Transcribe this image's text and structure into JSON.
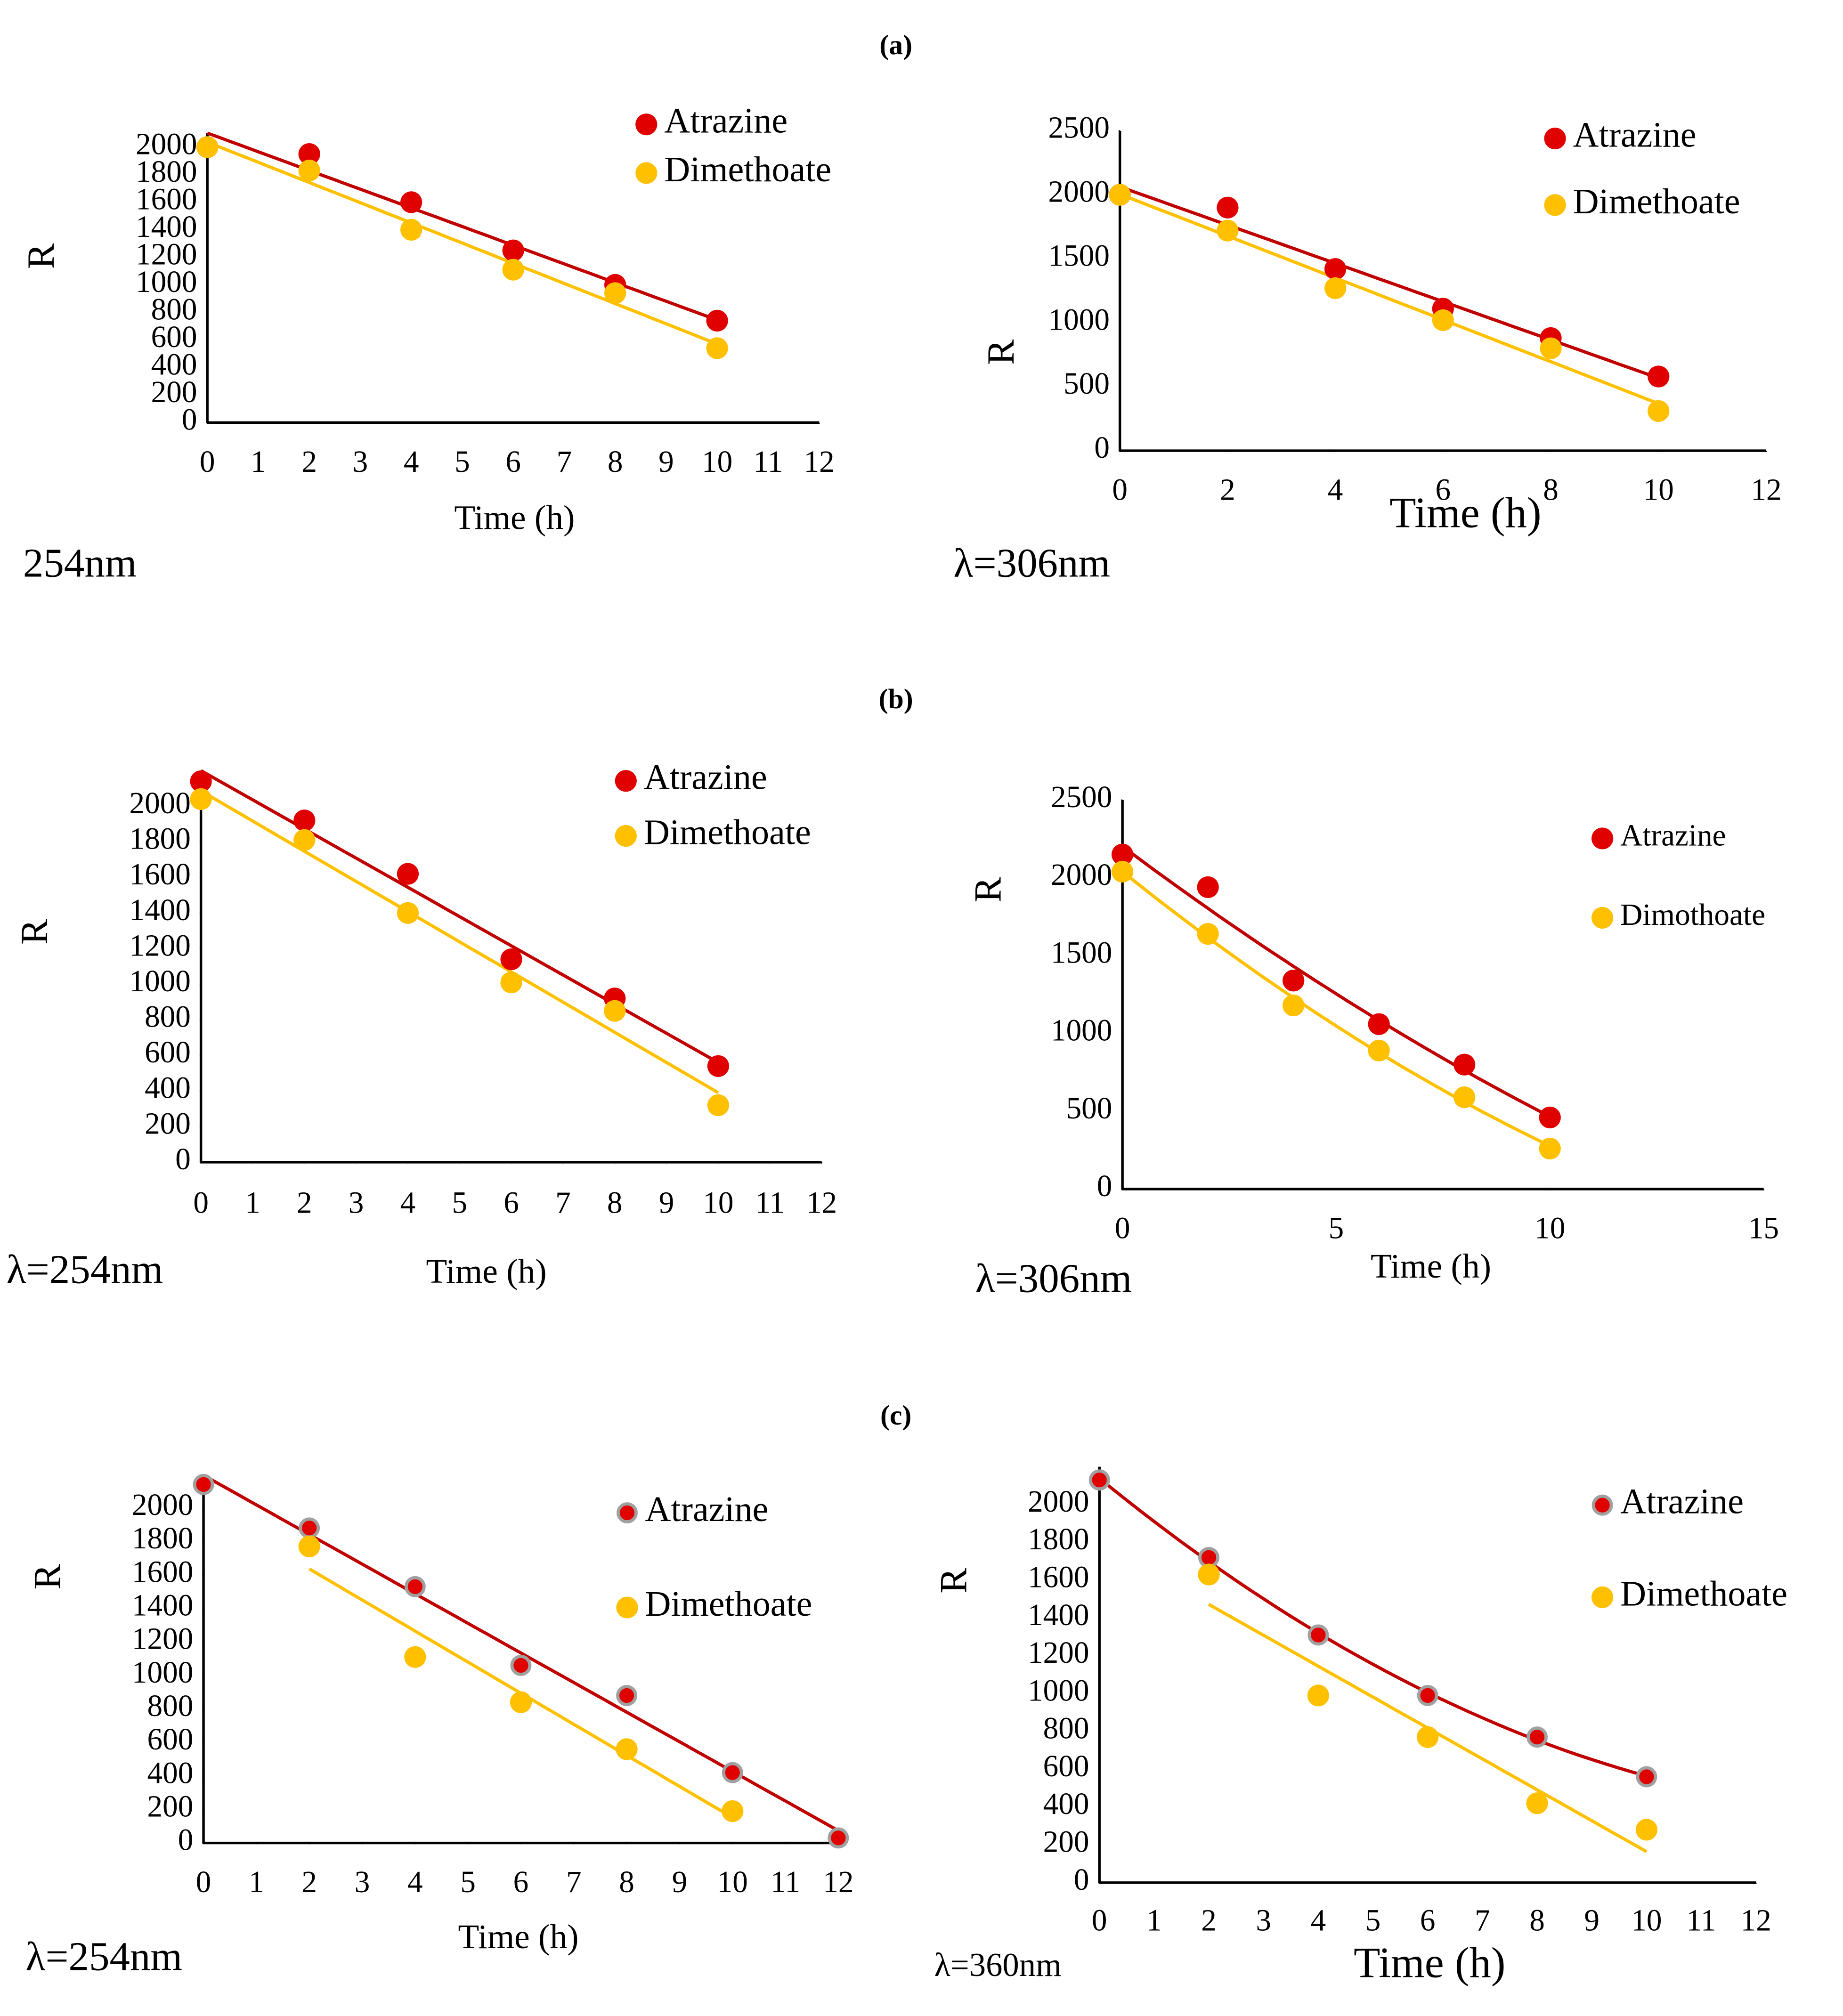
{
  "panel_labels": [
    "(a)",
    "(b)",
    "(c)"
  ],
  "chart_data": [
    {
      "type": "scatter",
      "x_label": "Time (h)",
      "y_label": "R",
      "annotation": "254nm",
      "x": [
        0,
        2,
        4,
        6,
        8,
        10
      ],
      "xlim": [
        0,
        12
      ],
      "xticks": [
        0,
        1,
        2,
        3,
        4,
        5,
        6,
        7,
        8,
        9,
        10,
        11,
        12
      ],
      "ylim": [
        0,
        2100
      ],
      "yticks": [
        0,
        200,
        400,
        600,
        800,
        1000,
        1200,
        1400,
        1600,
        1800,
        2000
      ],
      "series": [
        {
          "name": "Atrazine",
          "color": "#e00000",
          "trendline": "linear",
          "values": [
            2000,
            1950,
            1600,
            1250,
            1000,
            740
          ]
        },
        {
          "name": "Dimethoate",
          "color": "#ffc000",
          "trendline": "linear",
          "values": [
            2000,
            1830,
            1400,
            1110,
            940,
            540
          ]
        }
      ]
    },
    {
      "type": "scatter",
      "x_label": "Time (h)",
      "y_label": "R",
      "annotation": "λ=306nm",
      "x": [
        0,
        2,
        4,
        6,
        8,
        10
      ],
      "xlim": [
        0,
        12
      ],
      "xticks": [
        0,
        2,
        4,
        6,
        8,
        10,
        12
      ],
      "ylim": [
        0,
        2500
      ],
      "yticks": [
        0,
        500,
        1000,
        1500,
        2000,
        2500
      ],
      "series": [
        {
          "name": "Atrazine",
          "color": "#e00000",
          "trendline": "linear",
          "values": [
            2000,
            1900,
            1420,
            1110,
            880,
            580
          ]
        },
        {
          "name": "Dimethoate",
          "color": "#ffc000",
          "trendline": "linear",
          "values": [
            2000,
            1720,
            1270,
            1020,
            800,
            310
          ]
        }
      ]
    },
    {
      "type": "scatter",
      "x_label": "Time (h)",
      "y_label": "R",
      "annotation": "λ=254nm",
      "x": [
        0,
        2,
        4,
        6,
        8,
        10
      ],
      "xlim": [
        0,
        12
      ],
      "xticks": [
        0,
        1,
        2,
        3,
        4,
        5,
        6,
        7,
        8,
        9,
        10,
        11,
        12
      ],
      "ylim": [
        0,
        2200
      ],
      "yticks": [
        0,
        200,
        400,
        600,
        800,
        1000,
        1200,
        1400,
        1600,
        1800,
        2000
      ],
      "series": [
        {
          "name": "Atrazine",
          "color": "#e00000",
          "trendline": "linear",
          "values": [
            2140,
            1920,
            1620,
            1140,
            920,
            540
          ]
        },
        {
          "name": "Dimethoate",
          "color": "#ffc000",
          "trendline": "linear",
          "values": [
            2040,
            1810,
            1400,
            1010,
            850,
            320
          ]
        }
      ]
    },
    {
      "type": "scatter",
      "x_label": "Time (h)",
      "y_label": "R",
      "annotation": "λ=306nm",
      "x": [
        0,
        2,
        4,
        6,
        8,
        10
      ],
      "xlim": [
        0,
        15
      ],
      "xticks": [
        0,
        5,
        10,
        15
      ],
      "ylim": [
        0,
        2500
      ],
      "yticks": [
        0,
        500,
        1000,
        1500,
        2000,
        2500
      ],
      "series": [
        {
          "name": "Atrazine",
          "color": "#e00000",
          "trendline": "polynomial",
          "values": [
            2150,
            1940,
            1340,
            1060,
            800,
            460
          ]
        },
        {
          "name": "Dimothoate",
          "color": "#ffc000",
          "trendline": "polynomial",
          "values": [
            2040,
            1640,
            1180,
            890,
            590,
            260
          ]
        }
      ]
    },
    {
      "type": "scatter",
      "x_label": "Time (h)",
      "y_label": "R",
      "annotation": "λ=254nm",
      "x": [
        0,
        2,
        4,
        6,
        8,
        10,
        12
      ],
      "xlim": [
        0,
        12
      ],
      "xticks": [
        0,
        1,
        2,
        3,
        4,
        5,
        6,
        7,
        8,
        9,
        10,
        11,
        12
      ],
      "ylim": [
        0,
        2200
      ],
      "yticks": [
        0,
        200,
        400,
        600,
        800,
        1000,
        1200,
        1400,
        1600,
        1800,
        2000
      ],
      "series": [
        {
          "name": "Atrazine",
          "color": "#e00000",
          "marker_edge": "#a0a0a0",
          "trendline": "linear",
          "values": [
            2140,
            1880,
            1530,
            1060,
            880,
            420,
            30
          ]
        },
        {
          "name": "Dimethoate",
          "color": "#ffc000",
          "trendline": "linear",
          "values": [
            null,
            1770,
            1110,
            840,
            560,
            190,
            null
          ]
        }
      ]
    },
    {
      "type": "scatter",
      "x_label": "Time (h)",
      "y_label": "R",
      "annotation": "λ=360nm",
      "x": [
        0,
        2,
        4,
        6,
        8,
        10
      ],
      "xlim": [
        0,
        12
      ],
      "xticks": [
        0,
        1,
        2,
        3,
        4,
        5,
        6,
        7,
        8,
        9,
        10,
        11,
        12
      ],
      "ylim": [
        0,
        2200
      ],
      "yticks": [
        0,
        200,
        400,
        600,
        800,
        1000,
        1200,
        1400,
        1600,
        1800,
        2000
      ],
      "series": [
        {
          "name": "Atrazine",
          "color": "#e00000",
          "marker_edge": "#a0a0a0",
          "trendline": "polynomial",
          "values": [
            2130,
            1720,
            1310,
            990,
            770,
            560
          ]
        },
        {
          "name": "Dimethoate",
          "color": "#ffc000",
          "trendline": "linear",
          "values": [
            null,
            1630,
            990,
            770,
            420,
            280
          ]
        }
      ]
    }
  ]
}
